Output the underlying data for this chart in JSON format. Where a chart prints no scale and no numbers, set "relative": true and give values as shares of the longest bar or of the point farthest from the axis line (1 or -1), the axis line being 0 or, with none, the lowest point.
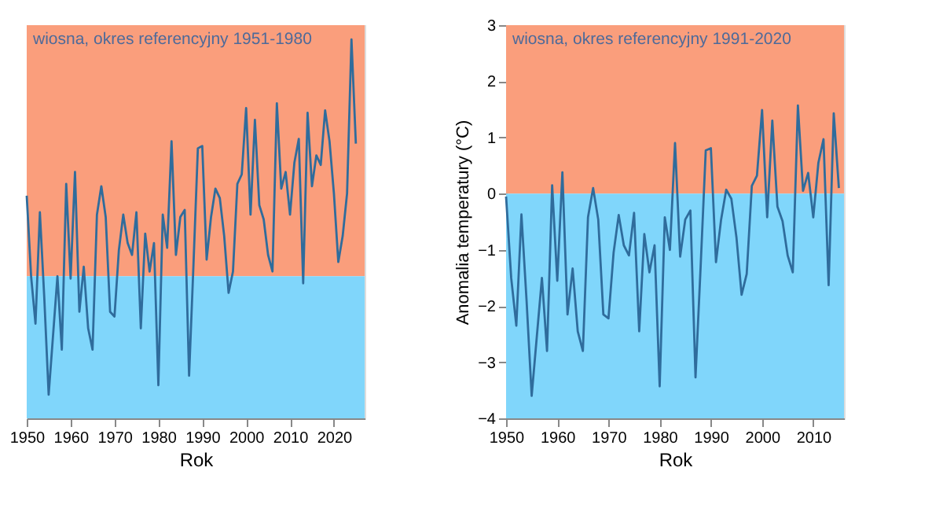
{
  "chart_data": [
    {
      "type": "line",
      "title": "wiosna, okres referencyjny 1951-1980",
      "xlabel": "Rok",
      "relative": true,
      "tick_labels": "x",
      "grid": false,
      "xlim": [
        1950,
        2027
      ],
      "xticks": [
        1950,
        1960,
        1970,
        1980,
        1990,
        2000,
        2010,
        2020
      ],
      "bands": [
        {
          "axis": "y",
          "from": 0,
          "to": 1.06,
          "color": "#fa9e7c"
        },
        {
          "axis": "y",
          "from": -0.6,
          "to": 0,
          "color": "#80d6fb"
        }
      ],
      "series": [
        {
          "color": "#2f6c9c",
          "x": [
            1950,
            1951,
            1952,
            1953,
            1954,
            1955,
            1956,
            1957,
            1958,
            1959,
            1960,
            1961,
            1962,
            1963,
            1964,
            1965,
            1966,
            1967,
            1968,
            1969,
            1970,
            1971,
            1972,
            1973,
            1974,
            1975,
            1976,
            1977,
            1978,
            1979,
            1980,
            1981,
            1982,
            1983,
            1984,
            1985,
            1986,
            1987,
            1988,
            1989,
            1990,
            1991,
            1992,
            1993,
            1994,
            1995,
            1996,
            1997,
            1998,
            1999,
            2000,
            2001,
            2002,
            2003,
            2004,
            2005,
            2006,
            2007,
            2008,
            2009,
            2010,
            2011,
            2012,
            2013,
            2014,
            2015,
            2016,
            2017,
            2018,
            2019,
            2020,
            2021,
            2022,
            2023,
            2024,
            2025
          ],
          "values": [
            0.34,
            0.0,
            -0.2,
            0.27,
            -0.09,
            -0.5,
            -0.25,
            0.0,
            -0.31,
            0.39,
            -0.01,
            0.44,
            -0.15,
            0.04,
            -0.22,
            -0.31,
            0.26,
            0.38,
            0.25,
            -0.15,
            -0.17,
            0.11,
            0.26,
            0.14,
            0.09,
            0.27,
            -0.22,
            0.18,
            0.02,
            0.14,
            -0.46,
            0.26,
            0.12,
            0.57,
            0.09,
            0.25,
            0.28,
            -0.42,
            0.05,
            0.54,
            0.55,
            0.07,
            0.25,
            0.37,
            0.33,
            0.17,
            -0.07,
            0.02,
            0.39,
            0.43,
            0.71,
            0.26,
            0.66,
            0.3,
            0.24,
            0.09,
            0.02,
            0.73,
            0.37,
            0.44,
            0.26,
            0.48,
            0.58,
            -0.03,
            0.69,
            0.38,
            0.51,
            0.47,
            0.7,
            0.57,
            0.35,
            0.06,
            0.17,
            0.35,
            1.0,
            0.56
          ]
        }
      ]
    },
    {
      "type": "line",
      "title": "wiosna, okres referencyjny 1991-2020",
      "xlabel": "Rok",
      "ylabel": "Anomalia temperatury (°C)",
      "grid": false,
      "xlim": [
        1950,
        2016
      ],
      "xticks": [
        1950,
        1960,
        1970,
        1980,
        1990,
        2000,
        2010
      ],
      "ylim": [
        -4,
        3
      ],
      "yticks": [
        -4,
        -3,
        -2,
        -1,
        0,
        1,
        2,
        3
      ],
      "bands": [
        {
          "axis": "y",
          "from": 0,
          "to": 3,
          "color": "#fa9e7c"
        },
        {
          "axis": "y",
          "from": -4,
          "to": 0,
          "color": "#80d6fb"
        }
      ],
      "series": [
        {
          "color": "#2f6c9c",
          "x": [
            1950,
            1951,
            1952,
            1953,
            1954,
            1955,
            1956,
            1957,
            1958,
            1959,
            1960,
            1961,
            1962,
            1963,
            1964,
            1965,
            1966,
            1967,
            1968,
            1969,
            1970,
            1971,
            1972,
            1973,
            1974,
            1975,
            1976,
            1977,
            1978,
            1979,
            1980,
            1981,
            1982,
            1983,
            1984,
            1985,
            1986,
            1987,
            1988,
            1989,
            1990,
            1991,
            1992,
            1993,
            1994,
            1995,
            1996,
            1997,
            1998,
            1999,
            2000,
            2001,
            2002,
            2003,
            2004,
            2005,
            2006,
            2007,
            2008,
            2009,
            2010,
            2011,
            2012,
            2013,
            2014,
            2015
          ],
          "values": [
            -0.05,
            -1.5,
            -2.35,
            -0.37,
            -1.9,
            -3.6,
            -2.55,
            -1.5,
            -2.8,
            0.15,
            -1.55,
            0.38,
            -2.15,
            -1.33,
            -2.45,
            -2.8,
            -0.42,
            0.1,
            -0.46,
            -2.15,
            -2.22,
            -1.05,
            -0.38,
            -0.92,
            -1.1,
            -0.34,
            -2.45,
            -0.72,
            -1.4,
            -0.92,
            -3.43,
            -0.42,
            -1.0,
            0.9,
            -1.12,
            -0.46,
            -0.3,
            -3.27,
            -1.3,
            0.77,
            0.81,
            -1.22,
            -0.46,
            0.07,
            -0.09,
            -0.78,
            -1.8,
            -1.43,
            0.14,
            0.32,
            1.49,
            -0.42,
            1.3,
            -0.23,
            -0.49,
            -1.1,
            -1.4,
            1.57,
            0.05,
            0.37,
            -0.42,
            0.55,
            0.97,
            -1.63,
            1.43,
            0.1
          ]
        }
      ]
    }
  ]
}
